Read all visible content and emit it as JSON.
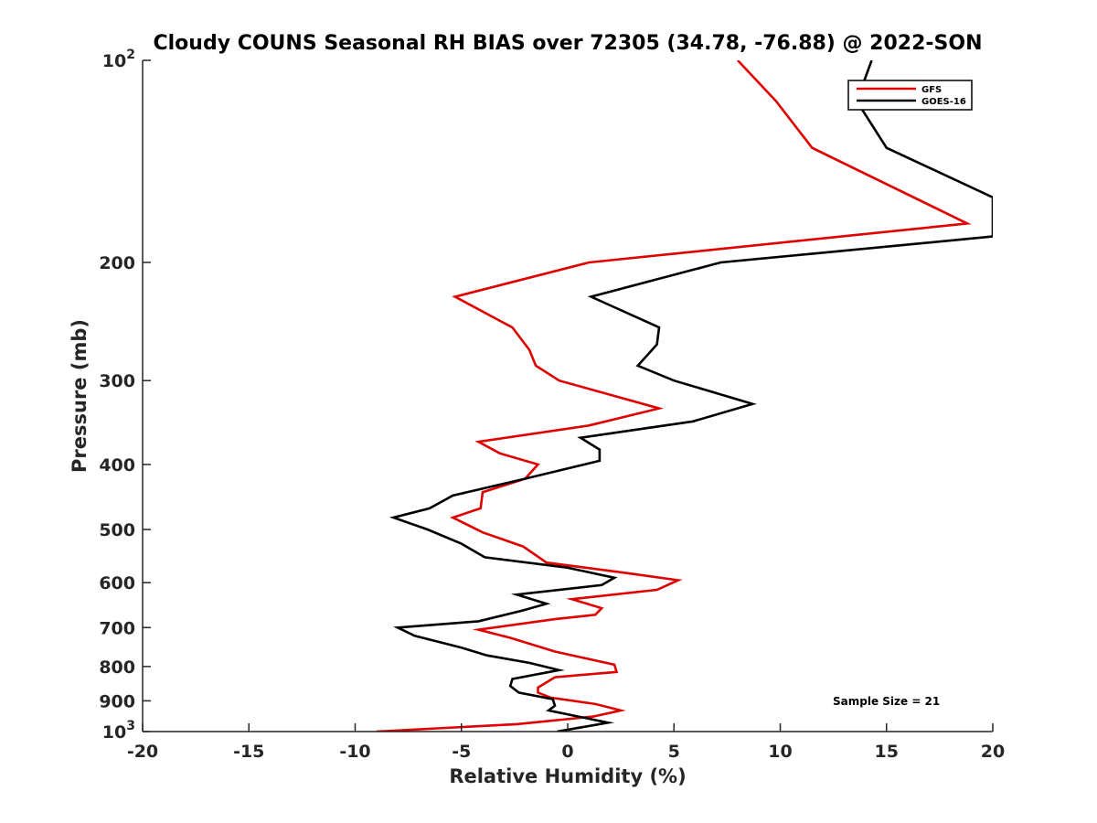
{
  "chart_data": {
    "type": "line",
    "title": "Cloudy COUNS Seasonal RH BIAS over 72305 (34.78, -76.88) @ 2022-SON",
    "xlabel": "Relative Humidity (%)",
    "ylabel": "Pressure (mb)",
    "xlim": [
      -20,
      20
    ],
    "ylim": [
      100,
      1000
    ],
    "yscale": "log",
    "y_reversed": true,
    "x_ticks": [
      -20,
      -15,
      -10,
      -5,
      0,
      5,
      10,
      15,
      20
    ],
    "x_tick_labels": [
      "-20",
      "-15",
      "-10",
      "-5",
      "0",
      "5",
      "10",
      "15",
      "20"
    ],
    "y_ticks": [
      {
        "value": 100,
        "base": "10",
        "exp": "2"
      },
      {
        "value": 200,
        "label": "200"
      },
      {
        "value": 300,
        "label": "300"
      },
      {
        "value": 400,
        "label": "400"
      },
      {
        "value": 500,
        "label": "500"
      },
      {
        "value": 600,
        "label": "600"
      },
      {
        "value": 700,
        "label": "700"
      },
      {
        "value": 800,
        "label": "800"
      },
      {
        "value": 900,
        "label": "900"
      },
      {
        "value": 1000,
        "base": "10",
        "exp": "3"
      }
    ],
    "legend_position": "top-right",
    "annotation": "Sample Size = 21",
    "series": [
      {
        "name": "GFS",
        "color": "#e00000",
        "points": [
          {
            "x": 8.0,
            "y": 100
          },
          {
            "x": 9.8,
            "y": 115
          },
          {
            "x": 11.5,
            "y": 135
          },
          {
            "x": 18.8,
            "y": 175
          },
          {
            "x": 1.0,
            "y": 200
          },
          {
            "x": -5.3,
            "y": 225
          },
          {
            "x": -2.6,
            "y": 250
          },
          {
            "x": -1.8,
            "y": 270
          },
          {
            "x": -1.5,
            "y": 285
          },
          {
            "x": -0.4,
            "y": 300
          },
          {
            "x": 4.3,
            "y": 330
          },
          {
            "x": 1.0,
            "y": 350
          },
          {
            "x": -4.2,
            "y": 370
          },
          {
            "x": -3.2,
            "y": 385
          },
          {
            "x": -1.4,
            "y": 400
          },
          {
            "x": -2.0,
            "y": 420
          },
          {
            "x": -4.0,
            "y": 440
          },
          {
            "x": -4.1,
            "y": 465
          },
          {
            "x": -5.4,
            "y": 480
          },
          {
            "x": -4.0,
            "y": 505
          },
          {
            "x": -2.1,
            "y": 530
          },
          {
            "x": -1.0,
            "y": 560
          },
          {
            "x": 2.7,
            "y": 580
          },
          {
            "x": 5.2,
            "y": 595
          },
          {
            "x": 4.2,
            "y": 615
          },
          {
            "x": 0.2,
            "y": 635
          },
          {
            "x": 1.6,
            "y": 655
          },
          {
            "x": 1.3,
            "y": 670
          },
          {
            "x": -0.6,
            "y": 680
          },
          {
            "x": -4.2,
            "y": 705
          },
          {
            "x": -2.7,
            "y": 725
          },
          {
            "x": -0.6,
            "y": 760
          },
          {
            "x": 2.2,
            "y": 795
          },
          {
            "x": 2.3,
            "y": 815
          },
          {
            "x": -0.6,
            "y": 830
          },
          {
            "x": -1.4,
            "y": 860
          },
          {
            "x": -1.4,
            "y": 875
          },
          {
            "x": -0.8,
            "y": 890
          },
          {
            "x": 1.3,
            "y": 910
          },
          {
            "x": 2.5,
            "y": 930
          },
          {
            "x": 1.2,
            "y": 950
          },
          {
            "x": -2.4,
            "y": 975
          },
          {
            "x": -9.0,
            "y": 1000
          }
        ]
      },
      {
        "name": "GOES-16",
        "color": "#000000",
        "points": [
          {
            "x": 14.3,
            "y": 100
          },
          {
            "x": 13.6,
            "y": 115
          },
          {
            "x": 15.0,
            "y": 135
          },
          {
            "x": 20.0,
            "y": 160
          },
          {
            "x": 20.0,
            "y": 183
          },
          {
            "x": 7.2,
            "y": 200
          },
          {
            "x": 1.1,
            "y": 225
          },
          {
            "x": 4.3,
            "y": 250
          },
          {
            "x": 4.2,
            "y": 265
          },
          {
            "x": 3.3,
            "y": 285
          },
          {
            "x": 5.0,
            "y": 300
          },
          {
            "x": 8.7,
            "y": 325
          },
          {
            "x": 5.9,
            "y": 345
          },
          {
            "x": 0.6,
            "y": 365
          },
          {
            "x": 1.5,
            "y": 380
          },
          {
            "x": 1.5,
            "y": 395
          },
          {
            "x": -2.0,
            "y": 420
          },
          {
            "x": -5.4,
            "y": 445
          },
          {
            "x": -6.5,
            "y": 465
          },
          {
            "x": -8.2,
            "y": 480
          },
          {
            "x": -6.6,
            "y": 500
          },
          {
            "x": -5.0,
            "y": 525
          },
          {
            "x": -3.9,
            "y": 550
          },
          {
            "x": 0.0,
            "y": 570
          },
          {
            "x": 2.2,
            "y": 590
          },
          {
            "x": 1.6,
            "y": 605
          },
          {
            "x": -2.4,
            "y": 625
          },
          {
            "x": -1.0,
            "y": 645
          },
          {
            "x": -2.1,
            "y": 660
          },
          {
            "x": -4.2,
            "y": 685
          },
          {
            "x": -8.0,
            "y": 700
          },
          {
            "x": -7.2,
            "y": 720
          },
          {
            "x": -5.0,
            "y": 750
          },
          {
            "x": -3.8,
            "y": 770
          },
          {
            "x": -1.8,
            "y": 790
          },
          {
            "x": -0.4,
            "y": 810
          },
          {
            "x": -2.6,
            "y": 835
          },
          {
            "x": -2.7,
            "y": 855
          },
          {
            "x": -2.3,
            "y": 875
          },
          {
            "x": -0.7,
            "y": 895
          },
          {
            "x": -0.6,
            "y": 915
          },
          {
            "x": -0.9,
            "y": 930
          },
          {
            "x": 1.9,
            "y": 970
          },
          {
            "x": -0.5,
            "y": 1000
          }
        ]
      }
    ]
  }
}
